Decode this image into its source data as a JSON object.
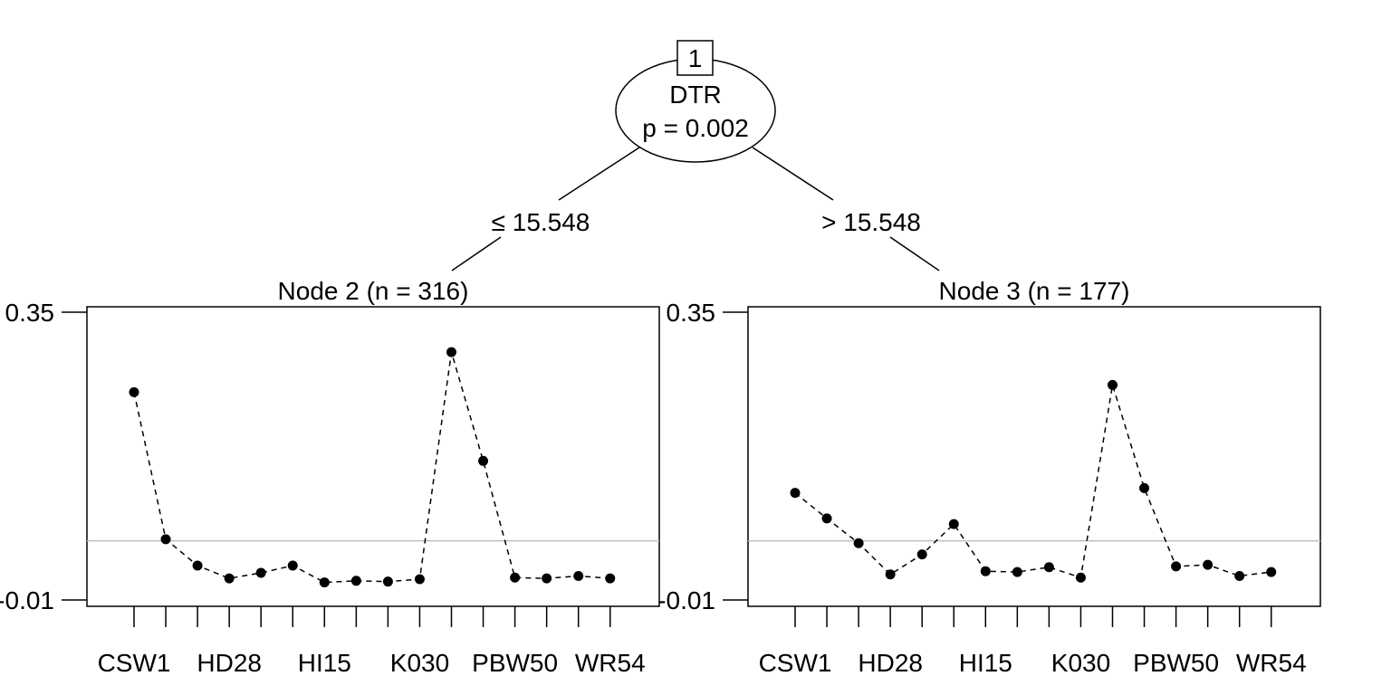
{
  "root": {
    "id": "1",
    "variable": "DTR",
    "p_label": "p = 0.002",
    "split_left": "≤ 15.548",
    "split_right": "> 15.548"
  },
  "chart_data": [
    {
      "type": "line",
      "title": "Node 2 (n = 316)",
      "ylim": [
        -0.01,
        0.35
      ],
      "y_tick_labels": [
        "-0.01",
        "0.35"
      ],
      "reference_line": 0.064,
      "x_tick_labels": [
        "CSW1",
        "HD28",
        "HI15",
        "K030",
        "PBW50",
        "WR54"
      ],
      "x_label_positions": [
        1,
        4,
        7,
        10,
        13,
        16
      ],
      "x_count": 16,
      "values": [
        0.25,
        0.066,
        0.033,
        0.017,
        0.024,
        0.033,
        0.012,
        0.014,
        0.013,
        0.016,
        0.3,
        0.164,
        0.018,
        0.017,
        0.02,
        0.017
      ]
    },
    {
      "type": "line",
      "title": "Node 3 (n = 177)",
      "ylim": [
        -0.01,
        0.35
      ],
      "y_tick_labels": [
        "-0.01",
        "0.35"
      ],
      "reference_line": 0.064,
      "x_tick_labels": [
        "CSW1",
        "HD28",
        "HI15",
        "K030",
        "PBW50",
        "WR54"
      ],
      "x_label_positions": [
        1,
        4,
        7,
        10,
        13,
        16
      ],
      "x_count": 16,
      "values": [
        0.124,
        0.092,
        0.061,
        0.022,
        0.047,
        0.085,
        0.026,
        0.025,
        0.031,
        0.018,
        0.259,
        0.13,
        0.032,
        0.034,
        0.02,
        0.025
      ]
    }
  ]
}
